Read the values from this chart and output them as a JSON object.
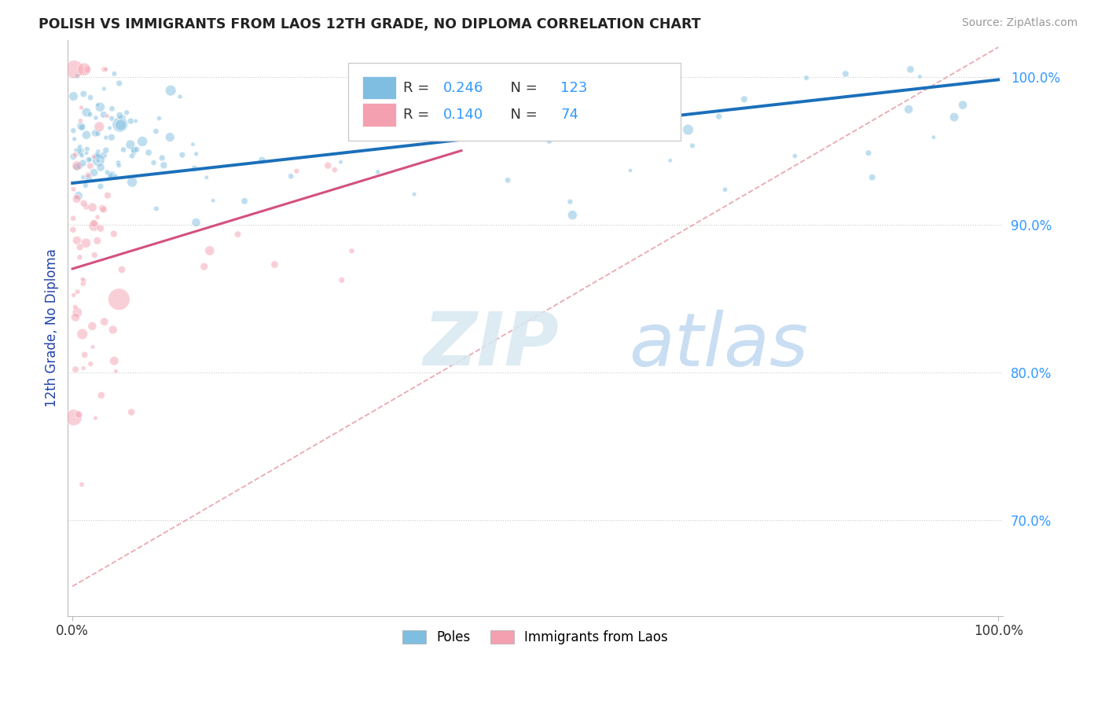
{
  "title": "POLISH VS IMMIGRANTS FROM LAOS 12TH GRADE, NO DIPLOMA CORRELATION CHART",
  "source": "Source: ZipAtlas.com",
  "ylabel": "12th Grade, No Diploma",
  "legend_blue_label": "Poles",
  "legend_pink_label": "Immigrants from Laos",
  "R_blue": 0.246,
  "N_blue": 123,
  "R_pink": 0.14,
  "N_pink": 74,
  "blue_color": "#7fbee0",
  "pink_color": "#f4a0b0",
  "trend_blue": "#1a6fba",
  "trend_pink": "#d45080",
  "diag_color": "#e8a0a8",
  "ytick_color": "#3399ff",
  "ylabel_color": "#2244aa",
  "watermark_color": "#d0e8f8",
  "ylim_low": 0.635,
  "ylim_high": 1.025,
  "xlim_low": -0.005,
  "xlim_high": 1.005,
  "yticks": [
    1.0,
    0.9,
    0.8,
    0.7
  ],
  "ytick_labels": [
    "100.0%",
    "90.0%",
    "80.0%",
    "70.0%"
  ],
  "blue_trend_x": [
    0.0,
    1.0
  ],
  "blue_trend_y": [
    0.928,
    0.998
  ],
  "pink_trend_x": [
    0.0,
    0.42
  ],
  "pink_trend_y": [
    0.87,
    0.95
  ]
}
